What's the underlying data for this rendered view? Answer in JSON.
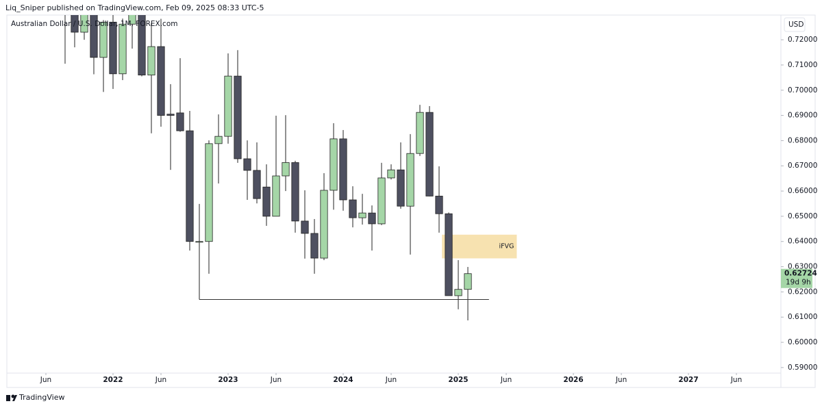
{
  "header": {
    "text": "Liq_Sniper published on TradingView.com, Feb 09, 2025 08:33 UTC-5"
  },
  "footer": {
    "brand": "TradingView"
  },
  "chart_data": {
    "type": "candlestick",
    "title": "Australian Dollar / U.S. Dollar, 1M, FOREX.com",
    "currency": "USD",
    "up_color": "#a5d6a7",
    "down_color": "#4e5060",
    "open": [
      0.7345,
      0.731,
      0.723,
      0.752,
      0.713,
      0.727,
      0.7065,
      0.7262,
      0.7483,
      0.706,
      0.7173,
      0.6905,
      0.691,
      0.6839,
      0.6397,
      0.64,
      0.6788,
      0.6817,
      0.7056,
      0.6728,
      0.6682,
      0.6616,
      0.65,
      0.666,
      0.6713,
      0.6481,
      0.6432,
      0.6334,
      0.6603,
      0.6807,
      0.6565,
      0.6494,
      0.6513,
      0.647,
      0.6652,
      0.6684,
      0.654,
      0.6749,
      0.6912,
      0.658,
      0.651,
      0.6185,
      0.621
    ],
    "high": [
      0.743,
      0.7478,
      0.7556,
      0.7555,
      0.7278,
      0.7315,
      0.7284,
      0.754,
      0.7662,
      0.7266,
      0.7283,
      0.7024,
      0.7127,
      0.6918,
      0.6549,
      0.6801,
      0.6904,
      0.7146,
      0.7159,
      0.6801,
      0.6793,
      0.6706,
      0.6899,
      0.6901,
      0.672,
      0.6603,
      0.6489,
      0.6671,
      0.6869,
      0.6842,
      0.6619,
      0.6589,
      0.6543,
      0.6712,
      0.6706,
      0.6793,
      0.6826,
      0.6942,
      0.6937,
      0.6698,
      0.6515,
      0.6326,
      0.6299
    ],
    "low": [
      0.7105,
      0.717,
      0.72,
      0.7063,
      0.6993,
      0.7005,
      0.704,
      0.7165,
      0.7055,
      0.6829,
      0.6855,
      0.6684,
      0.6835,
      0.6364,
      0.617,
      0.6272,
      0.663,
      0.6788,
      0.6712,
      0.6565,
      0.6551,
      0.6462,
      0.65,
      0.66,
      0.6435,
      0.6332,
      0.6272,
      0.6326,
      0.6526,
      0.6522,
      0.6456,
      0.6467,
      0.6364,
      0.6465,
      0.6646,
      0.653,
      0.6348,
      0.6739,
      0.6579,
      0.6435,
      0.6185,
      0.6131,
      0.6087
    ],
    "close": [
      0.731,
      0.723,
      0.752,
      0.713,
      0.727,
      0.7065,
      0.7262,
      0.7483,
      0.706,
      0.7173,
      0.69,
      0.69,
      0.6839,
      0.64,
      0.64,
      0.6788,
      0.6817,
      0.7056,
      0.6728,
      0.6682,
      0.657,
      0.65,
      0.666,
      0.6713,
      0.6481,
      0.6432,
      0.6334,
      0.6603,
      0.6807,
      0.6565,
      0.6494,
      0.6513,
      0.647,
      0.6652,
      0.6684,
      0.654,
      0.6749,
      0.6912,
      0.658,
      0.651,
      0.6185,
      0.621,
      0.62724
    ],
    "last_price_label": "0.62724",
    "countdown": "19d 9h",
    "xlim": [
      -6.07,
      74.64
    ],
    "xticks": [
      {
        "value": -2,
        "label": "Jun"
      },
      {
        "value": 5,
        "label": "2022"
      },
      {
        "value": 10,
        "label": "Jun"
      },
      {
        "value": 17,
        "label": "2023"
      },
      {
        "value": 22,
        "label": "Jun"
      },
      {
        "value": 29,
        "label": "2024"
      },
      {
        "value": 34,
        "label": "Jun"
      },
      {
        "value": 41,
        "label": "2025"
      },
      {
        "value": 46,
        "label": "Jun"
      },
      {
        "value": 53,
        "label": "2026"
      },
      {
        "value": 58,
        "label": "Jun"
      },
      {
        "value": 65,
        "label": "2027"
      },
      {
        "value": 70,
        "label": "Jun"
      }
    ],
    "ylim": [
      0.5878,
      0.7298
    ],
    "yticks": [
      {
        "value": 0.59,
        "label": "0.59000"
      },
      {
        "value": 0.6,
        "label": "0.60000"
      },
      {
        "value": 0.61,
        "label": "0.61000"
      },
      {
        "value": 0.62,
        "label": "0.62000"
      },
      {
        "value": 0.63,
        "label": "0.63000"
      },
      {
        "value": 0.64,
        "label": "0.64000"
      },
      {
        "value": 0.65,
        "label": "0.65000"
      },
      {
        "value": 0.66,
        "label": "0.66000"
      },
      {
        "value": 0.67,
        "label": "0.67000"
      },
      {
        "value": 0.68,
        "label": "0.68000"
      },
      {
        "value": 0.69,
        "label": "0.69000"
      },
      {
        "value": 0.7,
        "label": "0.70000"
      },
      {
        "value": 0.71,
        "label": "0.71000"
      },
      {
        "value": 0.72,
        "label": "0.72000"
      }
    ],
    "zones": [
      {
        "label": "iFVG",
        "low": 0.6333,
        "high": 0.6427,
        "start": 39.3,
        "end": 47.1,
        "color": "#f7e2b0"
      }
    ],
    "levels": [
      {
        "value": 0.617,
        "start": 14,
        "end": 44.2
      }
    ]
  }
}
